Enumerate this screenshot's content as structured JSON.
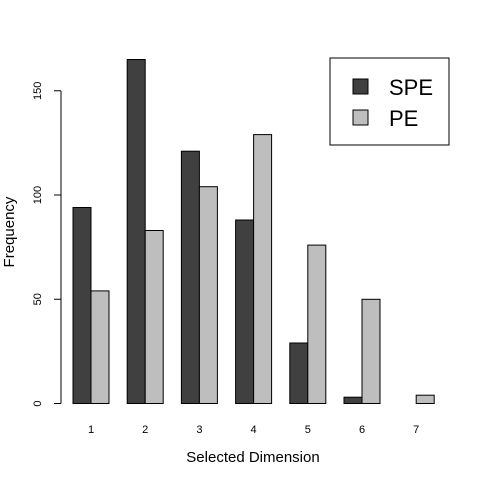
{
  "chart_data": {
    "type": "bar",
    "title": "",
    "xlabel": "Selected Dimension",
    "ylabel": "Frequency",
    "categories": [
      "1",
      "2",
      "3",
      "4",
      "5",
      "6",
      "7"
    ],
    "series": [
      {
        "name": "SPE",
        "color": "#404040",
        "values": [
          94,
          165,
          121,
          88,
          29,
          3,
          0
        ]
      },
      {
        "name": "PE",
        "color": "#bebebe",
        "values": [
          54,
          83,
          104,
          129,
          76,
          50,
          4
        ]
      }
    ],
    "ylim": [
      0,
      165
    ],
    "yticks": [
      0,
      50,
      100,
      150
    ],
    "grid": false,
    "legend": "top-right"
  }
}
